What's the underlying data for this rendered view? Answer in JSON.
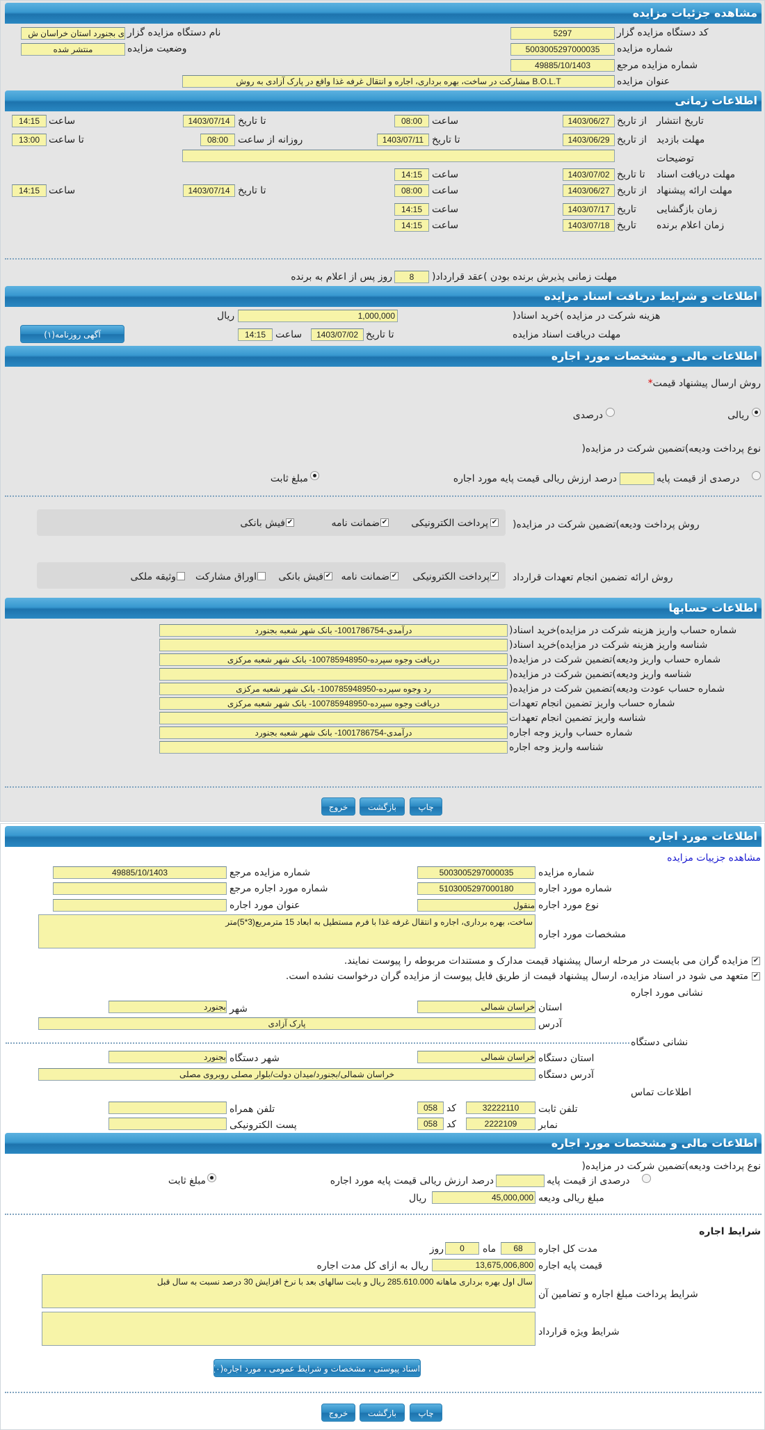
{
  "s1": {
    "title": "مشاهده جزئیات مزایده",
    "org_code_label": "کد دستگاه مزایده گزار",
    "org_code": "5297",
    "org_name_label": "نام دستگاه مزایده گزار",
    "org_name": "ی بجنورد استان خراسان ش",
    "auction_no_label": "شماره مزایده",
    "auction_no": "5003005297000035",
    "status_label": "وضعیت مزایده",
    "status": "منتشر شده",
    "ref_no_label": "شماره مزایده مرجع",
    "ref_no": "49885/10/1403",
    "title_label": "عنوان مزایده",
    "auction_title": "B.O.L.T مشارکت در ساخت، بهره برداری، اجاره و انتقال غرفه غذا واقع در پارک آزادی  به روش"
  },
  "time": {
    "title": "اطلاعات زمانی",
    "from_date_label": "از تاریخ",
    "to_date_label": "تا تاریخ",
    "hour_label": "ساعت",
    "to_hour_label": "تا ساعت",
    "date_label": "تاریخ",
    "publish_label": "تاریخ انتشار",
    "publish_from": "1403/06/27",
    "publish_from_time": "08:00",
    "publish_to": "1403/07/14",
    "publish_to_time": "14:15",
    "visit_label": "مهلت بازدید",
    "visit_from": "1403/06/29",
    "visit_to": "1403/07/11",
    "daily_from_label": "روزانه از ساعت",
    "visit_daily_from": "08:00",
    "visit_daily_to": "13:00",
    "notes_label": "توضیحات",
    "notes": "",
    "docs_label": "مهلت دریافت اسناد",
    "docs_to": "1403/07/02",
    "docs_time": "14:15",
    "offer_label": "مهلت ارائه پیشنهاد",
    "offer_from": "1403/06/27",
    "offer_from_time": "08:00",
    "offer_to": "1403/07/14",
    "offer_to_time": "14:15",
    "opening_label": "زمان بازگشایی",
    "opening_date": "1403/07/17",
    "opening_time": "14:15",
    "winner_label": "زمان اعلام برنده",
    "winner_date": "1403/07/18",
    "winner_time": "14:15",
    "contract_label": "مهلت زمانی پذیرش برنده بودن )عقد قرارداد(",
    "contract_days": "8",
    "contract_suffix": "روز پس از اعلام به برنده"
  },
  "docs": {
    "title": "اطلاعات و شرایط دریافت اسناد مزایده",
    "fee_label": "هزینه شرکت در مزایده )خرید اسناد(",
    "fee": "1,000,000",
    "rial": "ریال",
    "deadline_label": "مهلت دریافت اسناد مزایده",
    "to_date_label": "تا تاریخ",
    "deadline_date": "1403/07/02",
    "hour_label": "ساعت",
    "deadline_time": "14:15",
    "ad_button": "آگهی روزنامه(۱)"
  },
  "fin": {
    "title": "اطلاعات مالی و مشخصات مورد اجاره",
    "method_label": "روش ارسال پیشنهاد قیمت",
    "required_mark": "*",
    "method_options": [
      {
        "label": "ریالی",
        "checked": true
      },
      {
        "label": "درصدی",
        "checked": false
      }
    ],
    "deposit_type_label": "نوع پرداخت ودیعه)تضمین شرکت در مزایده(",
    "percent_label": "درصدی از قیمت پایه",
    "percent_checked": false,
    "percent_value": "",
    "percent_suffix": "درصد ارزش ریالی قیمت پایه مورد اجاره",
    "fixed_label": "مبلغ ثابت",
    "fixed_checked": true,
    "payment_label": "روش پرداخت ودیعه)تضمین شرکت در مزایده(",
    "payment_options": [
      {
        "label": "پرداخت الکترونیکی",
        "checked": true
      },
      {
        "label": "ضمانت نامه",
        "checked": true
      },
      {
        "label": "فیش بانکی",
        "checked": true
      }
    ],
    "guarantee_label": "روش ارائه تضمین انجام تعهدات قرارداد",
    "guarantee_options": [
      {
        "label": "پرداخت الکترونیکی",
        "checked": true
      },
      {
        "label": "ضمانت نامه",
        "checked": true
      },
      {
        "label": "فیش بانکی",
        "checked": true
      },
      {
        "label": "اوراق مشارکت",
        "checked": false
      },
      {
        "label": "وثیقه ملکی",
        "checked": false
      }
    ]
  },
  "accounts": {
    "title": "اطلاعات حسابها",
    "rows": [
      {
        "label": "شماره حساب واریز هزینه شرکت در مزایده)خرید اسناد(",
        "value": "درآمدی-1001786754- بانک شهر شعبه بجنورد"
      },
      {
        "label": "شناسه واریز هزینه شرکت در مزایده)خرید اسناد(",
        "value": ""
      },
      {
        "label": "شماره حساب واریز ودیعه)تضمین شرکت در مزایده(",
        "value": "دریافت وجوه سپرده-100785948950- بانک شهر شعبه مرکزی"
      },
      {
        "label": "شناسه واریز ودیعه)تضمین شرکت در مزایده(",
        "value": ""
      },
      {
        "label": "شماره حساب عودت ودیعه)تضمین شرکت در مزایده(",
        "value": "رد وجوه سپرده-100785948950- بانک شهر شعبه مرکزی"
      },
      {
        "label": "شماره حساب واریز تضمین انجام تعهدات",
        "value": "دریافت وجوه سپرده-100785948950- بانک شهر شعبه مرکزی"
      },
      {
        "label": "شناسه واریز تضمین انجام تعهدات",
        "value": ""
      },
      {
        "label": "شماره حساب واریز وجه اجاره",
        "value": "درآمدی-1001786754- بانک شهر شعبه بجنورد"
      },
      {
        "label": "شناسه واریز وجه اجاره",
        "value": ""
      }
    ]
  },
  "buttons": {
    "print": "چاپ",
    "back": "بازگشت",
    "exit": "خروج"
  },
  "lease": {
    "title": "اطلاعات مورد اجاره",
    "link": "مشاهده جزییات مزایده",
    "auction_no_label": "شماره مزایده",
    "auction_no": "5003005297000035",
    "ref_no_label": "شماره مزایده مرجع",
    "ref_no": "49885/10/1403",
    "item_no_label": "شماره مورد اجاره",
    "item_no": "5103005297000180",
    "item_ref_label": "شماره مورد اجاره مرجع",
    "item_ref": "",
    "type_label": "نوع مورد اجاره",
    "type": "منقول",
    "item_title_label": "عنوان مورد اجاره",
    "item_title": "",
    "specs_label": "مشخصات مورد اجاره",
    "specs": "ساخت، بهره برداری، اجاره و انتقال غرفه غذا  با فرم مستطیل به ابعاد 15 مترمربع(3*5)متر",
    "notice1": "مزایده گران می بایست در مرحله ارسال پیشنهاد قیمت مدارک و مستندات مربوطه را پیوست نمایند.",
    "notice1_checked": true,
    "notice2": "متعهد می شود در اسناد مزایده، ارسال پیشنهاد قیمت از طریق فایل پیوست از مزایده گران درخواست نشده است.",
    "notice2_checked": true,
    "address_heading": "نشانی مورد اجاره",
    "province_label": "استان",
    "province": "خراسان شمالی",
    "city_label": "شهر",
    "city": "بجنورد",
    "address_label": "آدرس",
    "address": "پارک آزادی",
    "org_heading": "نشانی دستگاه",
    "org_province_label": "استان دستگاه",
    "org_province": "خراسان شمالی",
    "org_city_label": "شهر دستگاه",
    "org_city": "بجنورد",
    "org_address_label": "آدرس دستگاه",
    "org_address": "خراسان شمالی/بجنورد/میدان دولت/بلوار مصلی روبروی مصلی",
    "contact_heading": "اطلاعات تماس",
    "phone_label": "تلفن ثابت",
    "phone": "32222110",
    "code_label": "کد",
    "phone_code": "058",
    "mobile_label": "تلفن همراه",
    "mobile": "",
    "fax_label": "نمابر",
    "fax": "2222109",
    "fax_code": "058",
    "email_label": "پست الکترونیکی",
    "email": ""
  },
  "lease_fin": {
    "title": "اطلاعات مالی و مشخصات مورد اجاره",
    "deposit_type_label": "نوع پرداخت ودیعه)تضمین شرکت در مزایده(",
    "percent_label": "درصدی از قیمت پایه",
    "percent_checked": false,
    "percent_value": "",
    "percent_suffix": "درصد ارزش ریالی قیمت پایه مورد اجاره",
    "fixed_label": "مبلغ ثابت",
    "fixed_checked": true,
    "deposit_label": "مبلغ ریالی ودیعه",
    "deposit": "45,000,000",
    "rial": "ریال",
    "terms_heading": "شرایط اجاره",
    "duration_label": "مدت کل اجاره",
    "months": "68",
    "month_label": "ماه",
    "days": "0",
    "day_label": "روز",
    "base_label": "قیمت پایه اجاره",
    "base": "13,675,006,800",
    "base_suffix": "ریال به ازای کل مدت اجاره",
    "payment_terms_label": "شرایط پرداخت مبلغ اجاره و تضامین آن",
    "payment_terms": "سال اول بهره برداری ماهانه 285.610.000 ریال و بابت سالهای بعد با نرخ افزایش 30 درصد نسبت به سال قبل",
    "special_label": "شرایط ویژه قرارداد",
    "special": "",
    "docs_button": "اسناد پیوستی ، مشخصات و شرایط عمومی ، مورد اجاره(۰)"
  }
}
